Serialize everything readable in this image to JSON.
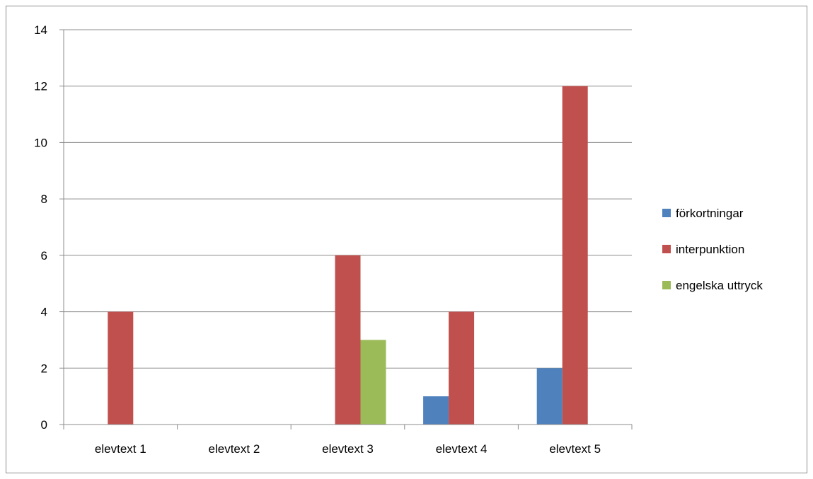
{
  "chart_data": {
    "type": "bar",
    "title": "",
    "xlabel": "",
    "ylabel": "",
    "categories": [
      "elevtext 1",
      "elevtext 2",
      "elevtext 3",
      "elevtext 4",
      "elevtext 5"
    ],
    "series": [
      {
        "name": "förkortningar",
        "color": "#4f81bd",
        "values": [
          0,
          0,
          0,
          1,
          2
        ]
      },
      {
        "name": "interpunktion",
        "color": "#c0504d",
        "values": [
          4,
          0,
          6,
          4,
          12
        ]
      },
      {
        "name": "engelska uttryck",
        "color": "#9bbb59",
        "values": [
          0,
          0,
          3,
          0,
          0
        ]
      }
    ],
    "ylim": [
      0,
      14
    ],
    "yticks": [
      0,
      2,
      4,
      6,
      8,
      10,
      12,
      14
    ],
    "grid": true,
    "legend_position": "right"
  }
}
